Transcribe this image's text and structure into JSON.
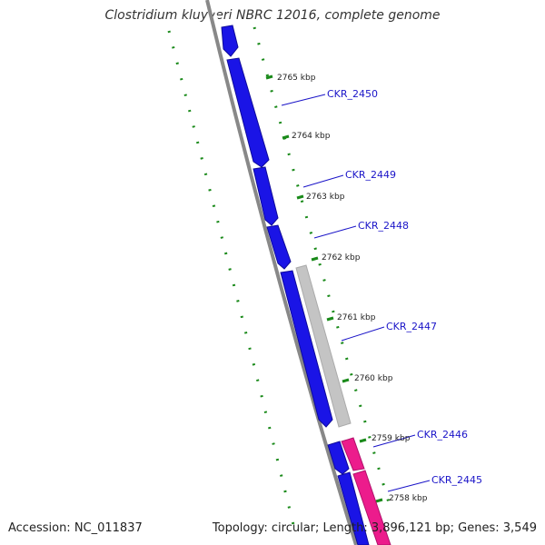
{
  "title": "Clostridium kluyveri NBRC 12016, complete genome",
  "footer": {
    "accession": "Accession: NC_011837",
    "summary": "Topology: circular; Length: 3,896,121 bp; Genes: 3,549"
  },
  "colors": {
    "backbone": "#888888",
    "gene_blue": "#1a14e6",
    "gene_gray": "#c4c4c4",
    "gene_pink": "#ec1c8c",
    "tick_green": "#1a8a1a",
    "label_blue": "#1a14c8"
  },
  "position_labels": [
    "2765 kbp",
    "2764 kbp",
    "2763 kbp",
    "2762 kbp",
    "2761 kbp",
    "2760 kbp",
    "2759 kbp",
    "2758 kbp"
  ],
  "gene_labels": [
    "CKR_2450",
    "CKR_2449",
    "CKR_2448",
    "CKR_2447",
    "CKR_2446",
    "CKR_2445"
  ]
}
